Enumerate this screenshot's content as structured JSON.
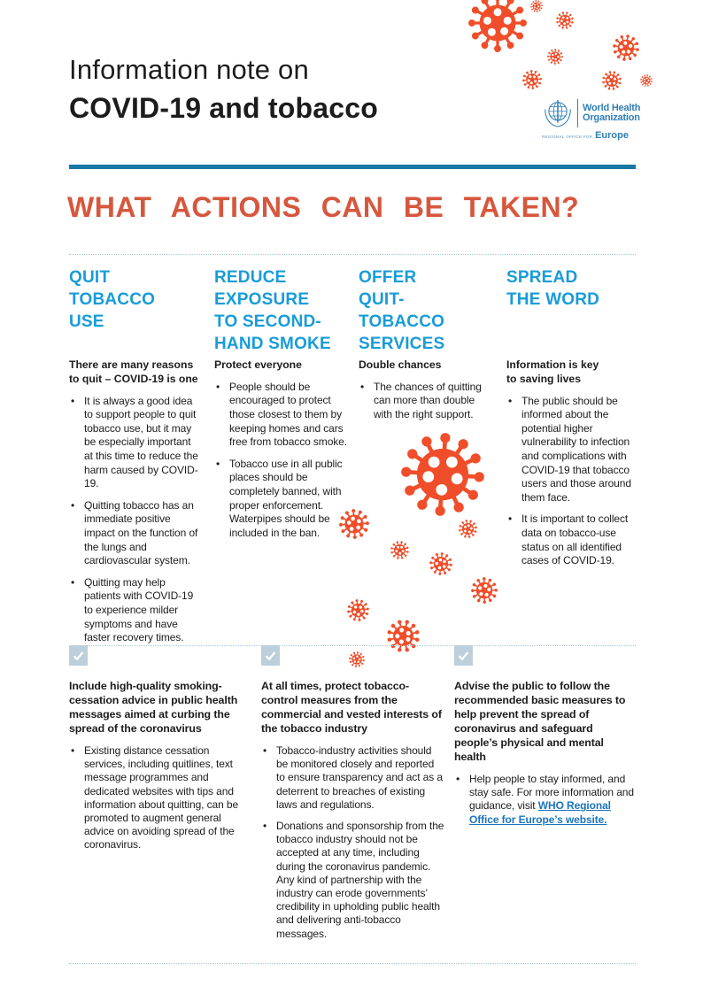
{
  "header": {
    "title_line1": "Information note on",
    "title_line2": "COVID-19 and tobacco",
    "logo": {
      "org_line1": "World Health",
      "org_line2": "Organization",
      "office_prefix": "REGIONAL OFFICE FOR",
      "office_region": "Europe"
    }
  },
  "section_title": "WHAT ACTIONS CAN BE TAKEN?",
  "columns": [
    {
      "heading": "QUIT\nTOBACCO\nUSE",
      "subheading": "There are many reasons\nto quit – COVID-19 is one",
      "bullets": [
        "It is always a good idea to support people to quit tobacco use, but it may be especially important at this time to reduce the harm caused by COVID-19.",
        "Quitting tobacco has an immediate positive impact on the function of the lungs and cardiovascular system.",
        "Quitting may help patients with COVID-19 to experience milder symptoms and have faster recovery times."
      ]
    },
    {
      "heading": "REDUCE\nEXPOSURE\nTO SECOND-\nHAND SMOKE",
      "subheading": "Protect everyone",
      "bullets": [
        "People should be encouraged to protect those closest to them by keeping homes and cars free from tobacco smoke.",
        "Tobacco use in all public places should be completely banned, with proper enforcement. Waterpipes should be included in the ban."
      ]
    },
    {
      "heading": "OFFER\nQUIT-\nTOBACCO\nSERVICES",
      "subheading": "Double chances",
      "bullets": [
        "The chances of quitting can more than double with the right support."
      ]
    },
    {
      "heading": "SPREAD\nTHE WORD",
      "subheading": "Information is key\nto saving lives",
      "bullets": [
        "The public should be informed about the potential higher vulnerability to infection and complications with COVID-19 that tobacco users and those around them face.",
        "It is important to collect data on tobacco-use status on all identified cases of COVID-19."
      ]
    }
  ],
  "actions": [
    {
      "heading": "Include high-quality smoking-cessation advice in public health messages aimed at curbing the spread of the coronavirus",
      "bullets": [
        "Existing distance cessation services, including quitlines, text message programmes and dedicated websites with tips and information about quitting, can be promoted to augment general advice on avoiding spread of the coronavirus."
      ]
    },
    {
      "heading": "At all times, protect tobacco-control measures from the commercial and vested interests of the tobacco industry",
      "bullets": [
        "Tobacco-industry activities should be monitored closely and reported to ensure transparency and act as a deterrent to breaches of existing laws and regulations.",
        "Donations and sponsorship from the tobacco industry should not be accepted at any time, including during the coronavirus pandemic. Any kind of partnership with the industry can erode governments’ credibility in upholding public health and delivering anti-tobacco messages."
      ]
    },
    {
      "heading": "Advise the public to follow the recommended basic measures to help prevent the spread of coronavirus and safeguard people’s physical and mental health",
      "bullets": [
        {
          "text": "Help people to stay informed, and stay safe. For more information and guidance, visit ",
          "link_text": "WHO Regional Office for Europe’s website."
        }
      ]
    }
  ],
  "icons": {
    "coronavirus": "coronavirus-icon",
    "checkmark": "checkmark-icon",
    "who_emblem": "who-emblem-icon"
  },
  "colors": {
    "accent_blue": "#189CD8",
    "rule_blue": "#1778A6",
    "heading_orange": "#D6573D",
    "virus_orange": "#F04E2A",
    "checkbox_blue": "#BCCFDB",
    "dotted_blue": "#A5C8DA",
    "link_blue": "#1B74BE",
    "who_blue": "#2F7EB6",
    "text_black": "#1C1C1C"
  }
}
